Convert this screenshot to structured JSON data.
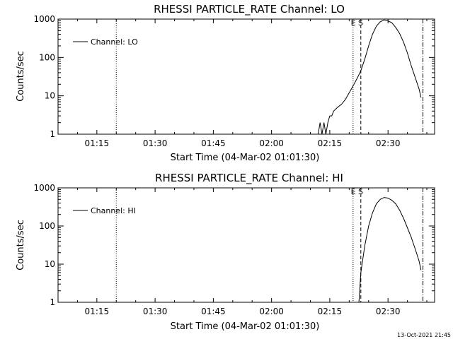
{
  "timestamp": "13-Oct-2021 21:45",
  "chart_data": [
    {
      "type": "line",
      "title": "RHESSI PARTICLE_RATE Channel: LO",
      "xlabel": "Start Time (04-Mar-02 01:01:30)",
      "ylabel": "Counts/sec",
      "yscale": "log",
      "ylim": [
        1,
        1000
      ],
      "xlim": [
        "01:05",
        "02:42"
      ],
      "x_ticks": [
        "01:15",
        "01:30",
        "01:45",
        "02:00",
        "02:15",
        "02:30"
      ],
      "y_ticks": [
        "1",
        "10",
        "100",
        "1000"
      ],
      "legend": {
        "position": "top-left",
        "entries": [
          "Channel: LO"
        ]
      },
      "event_label": "E S",
      "marker_lines": [
        {
          "time": "01:20",
          "style": "dotted"
        },
        {
          "time": "02:21",
          "style": "dotted"
        },
        {
          "time": "02:23",
          "style": "dashed"
        },
        {
          "time": "02:39",
          "style": "dash-dot"
        }
      ],
      "series": [
        {
          "name": "Channel: LO",
          "x": [
            "02:12",
            "02:12.5",
            "02:13",
            "02:13.5",
            "02:14",
            "02:14.5",
            "02:15",
            "02:15.5",
            "02:16",
            "02:17",
            "02:18",
            "02:19",
            "02:20",
            "02:21",
            "02:22",
            "02:23",
            "02:24",
            "02:25",
            "02:26",
            "02:27",
            "02:28",
            "02:29",
            "02:30",
            "02:31",
            "02:32",
            "02:33",
            "02:34",
            "02:35",
            "02:36",
            "02:37",
            "02:38",
            "02:38.5"
          ],
          "values": [
            1,
            2,
            1,
            2,
            1,
            2,
            3,
            3,
            4,
            5,
            6,
            8,
            12,
            18,
            28,
            45,
            90,
            200,
            400,
            650,
            850,
            950,
            900,
            800,
            600,
            420,
            250,
            130,
            60,
            30,
            15,
            9
          ]
        }
      ]
    },
    {
      "type": "line",
      "title": "RHESSI PARTICLE_RATE Channel: HI",
      "xlabel": "Start Time (04-Mar-02 01:01:30)",
      "ylabel": "Counts/sec",
      "yscale": "log",
      "ylim": [
        1,
        1000
      ],
      "xlim": [
        "01:05",
        "02:42"
      ],
      "x_ticks": [
        "01:15",
        "01:30",
        "01:45",
        "02:00",
        "02:15",
        "02:30"
      ],
      "y_ticks": [
        "1",
        "10",
        "100",
        "1000"
      ],
      "legend": {
        "position": "top-left",
        "entries": [
          "Channel: HI"
        ]
      },
      "event_label": "E S",
      "marker_lines": [
        {
          "time": "01:20",
          "style": "dotted"
        },
        {
          "time": "02:21",
          "style": "dotted"
        },
        {
          "time": "02:23",
          "style": "dashed"
        },
        {
          "time": "02:39",
          "style": "dash-dot"
        }
      ],
      "series": [
        {
          "name": "Channel: HI",
          "x": [
            "02:22.5",
            "02:23",
            "02:24",
            "02:25",
            "02:26",
            "02:27",
            "02:28",
            "02:29",
            "02:30",
            "02:31",
            "02:32",
            "02:33",
            "02:34",
            "02:35",
            "02:36",
            "02:37",
            "02:38",
            "02:38.5"
          ],
          "values": [
            1,
            6,
            30,
            100,
            220,
            380,
            500,
            560,
            540,
            470,
            380,
            260,
            160,
            90,
            50,
            25,
            12,
            7
          ]
        }
      ]
    }
  ]
}
